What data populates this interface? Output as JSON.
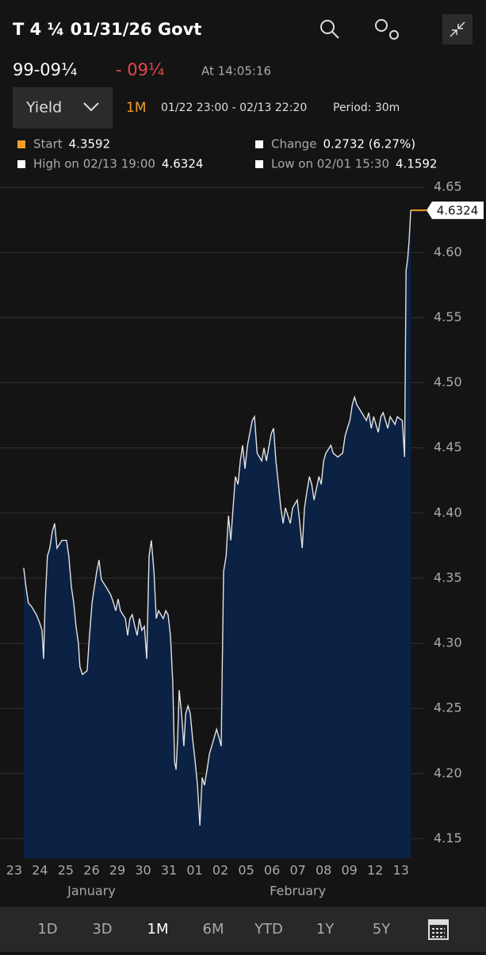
{
  "header": {
    "title": "T 4 ¼ 01/31/26 Govt",
    "price": "99-09¼",
    "change": "- 09¼",
    "time": "At 14:05:16"
  },
  "controls": {
    "dropdown": "Yield",
    "range": "1M",
    "dates": "01/22 23:00 - 02/13 22:20",
    "period": "Period: 30m"
  },
  "stats": [
    {
      "label": "Start",
      "value": "4.3592"
    },
    {
      "label": "Change",
      "value": "0.2732 (6.27%)"
    },
    {
      "label": "High on 02/13 19:00",
      "value": "4.6324"
    },
    {
      "label": "Low on 02/01 15:30",
      "value": "4.1592"
    }
  ],
  "chart_data": {
    "type": "area",
    "x": [
      0.37,
      0.46,
      0.55,
      0.68,
      0.86,
      0.98,
      1.08,
      1.14,
      1.2,
      1.29,
      1.38,
      1.48,
      1.57,
      1.66,
      1.85,
      2.03,
      2.12,
      2.22,
      2.31,
      2.4,
      2.49,
      2.55,
      2.65,
      2.83,
      2.92,
      3.02,
      3.11,
      3.2,
      3.29,
      3.38,
      3.57,
      3.75,
      3.85,
      3.94,
      4.03,
      4.12,
      4.31,
      4.4,
      4.49,
      4.58,
      4.68,
      4.77,
      4.86,
      4.95,
      5.05,
      5.14,
      5.23,
      5.32,
      5.42,
      5.51,
      5.6,
      5.78,
      5.88,
      5.97,
      6.06,
      6.15,
      6.22,
      6.28,
      6.34,
      6.4,
      6.49,
      6.58,
      6.65,
      6.74,
      6.83,
      6.92,
      7.02,
      7.11,
      7.2,
      7.29,
      7.38,
      7.48,
      7.57,
      7.66,
      7.85,
      7.94,
      8.03,
      8.12,
      8.22,
      8.31,
      8.4,
      8.49,
      8.58,
      8.68,
      8.77,
      8.86,
      8.95,
      9.05,
      9.23,
      9.32,
      9.42,
      9.6,
      9.69,
      9.78,
      9.97,
      10.06,
      10.15,
      10.25,
      10.34,
      10.43,
      10.52,
      10.71,
      10.8,
      10.98,
      11.08,
      11.17,
      11.26,
      11.35,
      11.45,
      11.54,
      11.63,
      11.82,
      11.91,
      12.0,
      12.09,
      12.28,
      12.37,
      12.55,
      12.74,
      12.83,
      12.92,
      13.02,
      13.11,
      13.2,
      13.29,
      13.48,
      13.66,
      13.75,
      13.85,
      13.94,
      14.12,
      14.22,
      14.31,
      14.49,
      14.58,
      14.77,
      14.86,
      15.05,
      15.14,
      15.2,
      15.26,
      15.32,
      15.38
    ],
    "series": [
      {
        "color": "#e2e2e2",
        "fill": "#0b2245",
        "values": [
          4.358,
          4.343,
          4.331,
          4.328,
          4.322,
          4.316,
          4.31,
          4.288,
          4.331,
          4.367,
          4.373,
          4.386,
          4.392,
          4.373,
          4.379,
          4.379,
          4.367,
          4.343,
          4.331,
          4.313,
          4.3,
          4.282,
          4.276,
          4.279,
          4.306,
          4.331,
          4.343,
          4.355,
          4.364,
          4.349,
          4.343,
          4.337,
          4.331,
          4.325,
          4.334,
          4.325,
          4.319,
          4.306,
          4.319,
          4.322,
          4.313,
          4.306,
          4.319,
          4.31,
          4.313,
          4.288,
          4.367,
          4.379,
          4.355,
          4.319,
          4.325,
          4.319,
          4.325,
          4.322,
          4.306,
          4.27,
          4.209,
          4.203,
          4.227,
          4.264,
          4.246,
          4.221,
          4.246,
          4.252,
          4.246,
          4.227,
          4.209,
          4.191,
          4.16,
          4.197,
          4.191,
          4.203,
          4.215,
          4.221,
          4.234,
          4.228,
          4.221,
          4.355,
          4.367,
          4.398,
          4.379,
          4.404,
          4.428,
          4.422,
          4.44,
          4.452,
          4.434,
          4.452,
          4.471,
          4.474,
          4.446,
          4.44,
          4.45,
          4.44,
          4.461,
          4.465,
          4.44,
          4.422,
          4.404,
          4.392,
          4.404,
          4.392,
          4.404,
          4.41,
          4.392,
          4.373,
          4.404,
          4.416,
          4.428,
          4.422,
          4.41,
          4.428,
          4.422,
          4.44,
          4.446,
          4.452,
          4.446,
          4.443,
          4.446,
          4.459,
          4.465,
          4.471,
          4.483,
          4.489,
          4.483,
          4.477,
          4.471,
          4.477,
          4.465,
          4.474,
          4.462,
          4.474,
          4.477,
          4.465,
          4.474,
          4.468,
          4.474,
          4.471,
          4.443,
          4.586,
          4.595,
          4.61,
          4.6324
        ]
      }
    ],
    "last_color": "#f39c28",
    "xlim": [
      -0.55,
      15.9
    ],
    "ylim": [
      4.135,
      4.655
    ],
    "xticks": [
      {
        "value": 0,
        "label": "23"
      },
      {
        "value": 1,
        "label": "24"
      },
      {
        "value": 2,
        "label": "25"
      },
      {
        "value": 3,
        "label": "26"
      },
      {
        "value": 4,
        "label": "29"
      },
      {
        "value": 5,
        "label": "30"
      },
      {
        "value": 6,
        "label": "31"
      },
      {
        "value": 7,
        "label": "01"
      },
      {
        "value": 8,
        "label": "02"
      },
      {
        "value": 9,
        "label": "05"
      },
      {
        "value": 10,
        "label": "06"
      },
      {
        "value": 11,
        "label": "07"
      },
      {
        "value": 12,
        "label": "08"
      },
      {
        "value": 13,
        "label": "09"
      },
      {
        "value": 14,
        "label": "12"
      },
      {
        "value": 15,
        "label": "13"
      }
    ],
    "xmonths": [
      {
        "value": 3,
        "label": "January"
      },
      {
        "value": 11,
        "label": "February"
      }
    ],
    "yticks": [
      4.65,
      {
        "value": 4.6,
        "label": "4.60"
      },
      4.55,
      {
        "value": 4.5,
        "label": "4.50"
      },
      4.45,
      {
        "value": 4.4,
        "label": "4.40"
      },
      4.35,
      {
        "value": 4.3,
        "label": "4.30"
      },
      4.25,
      {
        "value": 4.2,
        "label": "4.20"
      },
      4.15
    ],
    "grid": true
  },
  "tabs": [
    "1D",
    "3D",
    "1M",
    "6M",
    "YTD",
    "1Y",
    "5Y"
  ]
}
